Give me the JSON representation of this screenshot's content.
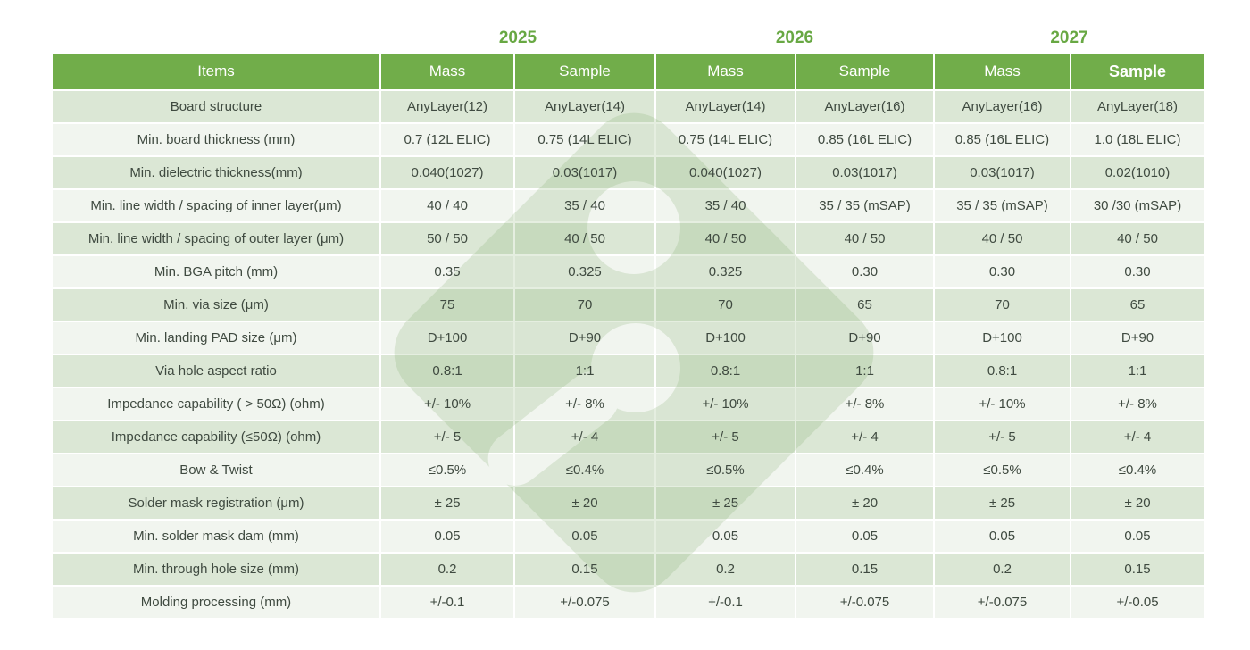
{
  "years": [
    "2025",
    "2026",
    "2027"
  ],
  "header": {
    "items_label": "Items",
    "col_labels": [
      "Mass",
      "Sample",
      "Mass",
      "Sample",
      "Mass",
      "Sample"
    ]
  },
  "rows": [
    {
      "item": "Board structure",
      "values": [
        "AnyLayer(12)",
        "AnyLayer(14)",
        "AnyLayer(14)",
        "AnyLayer(16)",
        "AnyLayer(16)",
        "AnyLayer(18)"
      ]
    },
    {
      "item": "Min. board thickness  (mm)",
      "values": [
        "0.7  (12L ELIC)",
        "0.75  (14L ELIC)",
        "0.75  (14L ELIC)",
        "0.85  (16L ELIC)",
        "0.85  (16L ELIC)",
        "1.0  (18L ELIC)"
      ]
    },
    {
      "item": "Min. dielectric thickness(mm)",
      "values": [
        "0.040(1027)",
        "0.03(1017)",
        "0.040(1027)",
        "0.03(1017)",
        "0.03(1017)",
        "0.02(1010)"
      ]
    },
    {
      "item": "Min. line width / spacing of inner layer(μm)",
      "values": [
        "40 / 40",
        "35 / 40",
        "35 / 40",
        "35 / 35  (mSAP)",
        "35 / 35  (mSAP)",
        "30 /30  (mSAP)"
      ]
    },
    {
      "item": "Min. line width / spacing of outer layer  (μm)",
      "values": [
        "50 / 50",
        "40 / 50",
        "40 / 50",
        "40 / 50",
        "40 / 50",
        "40 / 50"
      ]
    },
    {
      "item": "Min. BGA pitch  (mm)",
      "values": [
        "0.35",
        "0.325",
        "0.325",
        "0.30",
        "0.30",
        "0.30"
      ]
    },
    {
      "item": "Min. via size  (μm)",
      "values": [
        "75",
        "70",
        "70",
        "65",
        "70",
        "65"
      ]
    },
    {
      "item": "Min. landing PAD size  (μm)",
      "values": [
        "D+100",
        "D+90",
        "D+100",
        "D+90",
        "D+100",
        "D+90"
      ]
    },
    {
      "item": "Via hole aspect ratio",
      "values": [
        "0.8:1",
        "1:1",
        "0.8:1",
        "1:1",
        "0.8:1",
        "1:1"
      ]
    },
    {
      "item": "Impedance capability  ( > 50Ω)    (ohm)",
      "values": [
        "+/- 10%",
        "+/- 8%",
        "+/- 10%",
        "+/- 8%",
        "+/- 10%",
        "+/- 8%"
      ]
    },
    {
      "item": "Impedance capability  (≤50Ω)    (ohm)",
      "values": [
        "+/- 5",
        "+/- 4",
        "+/- 5",
        "+/- 4",
        "+/- 5",
        "+/- 4"
      ]
    },
    {
      "item": "Bow & Twist",
      "values": [
        "≤0.5%",
        "≤0.4%",
        "≤0.5%",
        "≤0.4%",
        "≤0.5%",
        "≤0.4%"
      ]
    },
    {
      "item": "Solder mask registration  (μm)",
      "values": [
        "± 25",
        "± 20",
        "± 25",
        "± 20",
        "± 25",
        "± 20"
      ]
    },
    {
      "item": "Min. solder mask dam  (mm)",
      "values": [
        "0.05",
        "0.05",
        "0.05",
        "0.05",
        "0.05",
        "0.05"
      ]
    },
    {
      "item": "Min. through hole size  (mm)",
      "values": [
        "0.2",
        "0.15",
        "0.2",
        "0.15",
        "0.2",
        "0.15"
      ]
    },
    {
      "item": "Molding processing  (mm)",
      "values": [
        "+/-0.1",
        "+/-0.075",
        "+/-0.1",
        "+/-0.075",
        "+/-0.075",
        "+/-0.05"
      ]
    }
  ],
  "colors": {
    "header_green": "#71ad4a",
    "year_green": "#68a843",
    "row_tint_green": "#dbe8d2",
    "row_tint_white": "#f0f4ec",
    "text": "#3f4a40",
    "watermark_green": "#dfeeda"
  }
}
